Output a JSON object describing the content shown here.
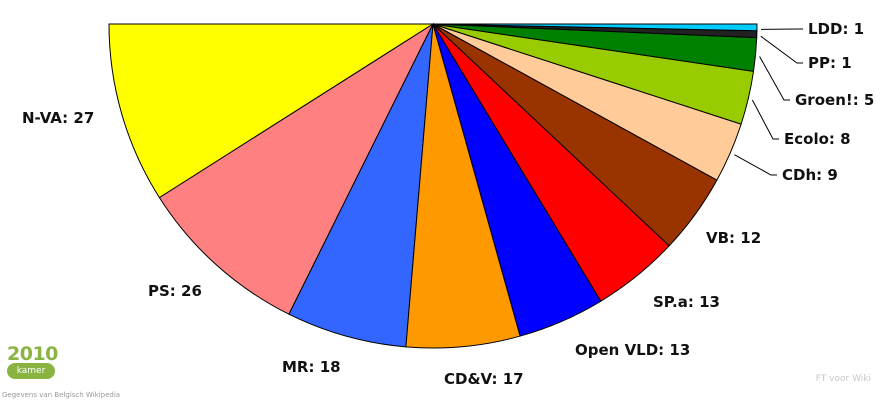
{
  "chart_data": {
    "type": "pie",
    "subtype": "half-pie (parliament seats)",
    "title": "",
    "slices": [
      {
        "label": "N-VA: 27",
        "party": "N-VA",
        "seats": 27,
        "color": "#ffff00"
      },
      {
        "label": "PS: 26",
        "party": "PS",
        "seats": 26,
        "color": "#ff8080"
      },
      {
        "label": "MR: 18",
        "party": "MR",
        "seats": 18,
        "color": "#3366ff"
      },
      {
        "label": "CD&V: 17",
        "party": "CD&V",
        "seats": 17,
        "color": "#ff9900"
      },
      {
        "label": "Open VLD: 13",
        "party": "Open VLD",
        "seats": 13,
        "color": "#0000ff"
      },
      {
        "label": "SP.a: 13",
        "party": "SP.a",
        "seats": 13,
        "color": "#ff0000"
      },
      {
        "label": "VB: 12",
        "party": "VB",
        "seats": 12,
        "color": "#993300"
      },
      {
        "label": "CDh: 9",
        "party": "CDh",
        "seats": 9,
        "color": "#ffcc99"
      },
      {
        "label": "Ecolo: 8",
        "party": "Ecolo",
        "seats": 8,
        "color": "#99cc00"
      },
      {
        "label": "Groen!: 5",
        "party": "Groen!",
        "seats": 5,
        "color": "#008000"
      },
      {
        "label": "PP: 1",
        "party": "PP",
        "seats": 1,
        "color": "#222222"
      },
      {
        "label": "LDD: 1",
        "party": "LDD",
        "seats": 1,
        "color": "#00ccff"
      }
    ]
  },
  "logo": {
    "year": "2010",
    "chamber": "kamer"
  },
  "credit": "FT voor Wiki",
  "source": "Gegevens van Belgisch Wikipedia"
}
